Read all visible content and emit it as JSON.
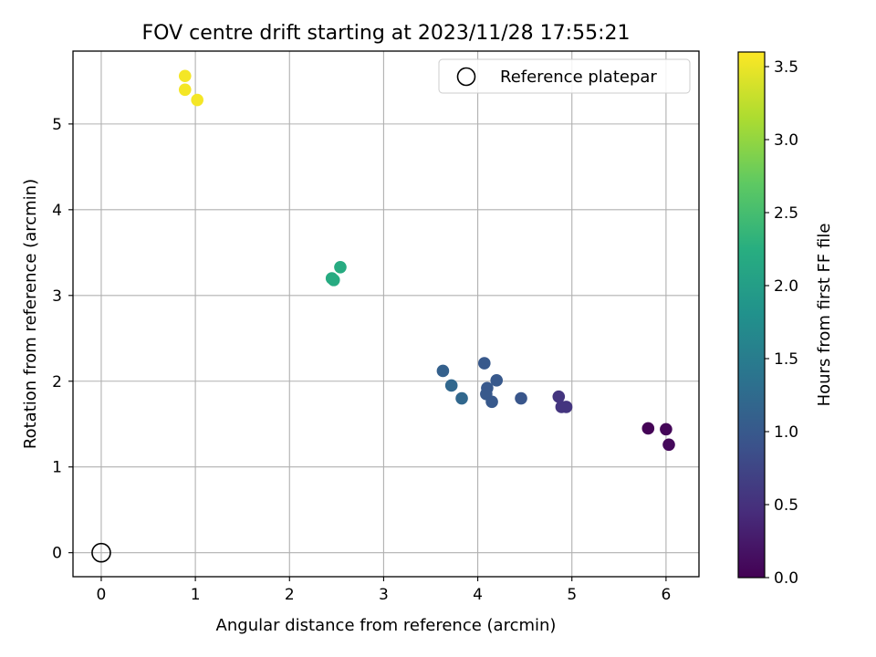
{
  "chart_data": {
    "type": "scatter",
    "title": "FOV centre drift starting at 2023/11/28 17:55:21",
    "xlabel": "Angular distance from reference (arcmin)",
    "ylabel": "Rotation from reference (arcmin)",
    "xlim": [
      -0.3,
      6.35
    ],
    "ylim": [
      -0.28,
      5.85
    ],
    "xticks": [
      0,
      1,
      2,
      3,
      4,
      5,
      6
    ],
    "yticks": [
      0,
      1,
      2,
      3,
      4,
      5
    ],
    "grid": true,
    "legend": {
      "position": "top-right",
      "entries": [
        "Reference platepar"
      ]
    },
    "reference_point": {
      "x": 0,
      "y": 0,
      "label": "Reference platepar"
    },
    "colorbar": {
      "label": "Hours from first FF file",
      "range": [
        0.0,
        3.6
      ],
      "ticks": [
        "0.0",
        "0.5",
        "1.0",
        "1.5",
        "2.0",
        "2.5",
        "3.0",
        "3.5"
      ],
      "colormap": "viridis"
    },
    "points": [
      {
        "x": 5.81,
        "y": 1.45,
        "hours": 0.02
      },
      {
        "x": 6.0,
        "y": 1.44,
        "hours": 0.05
      },
      {
        "x": 6.03,
        "y": 1.26,
        "hours": 0.08
      },
      {
        "x": 4.86,
        "y": 1.82,
        "hours": 0.55
      },
      {
        "x": 4.89,
        "y": 1.7,
        "hours": 0.55
      },
      {
        "x": 4.94,
        "y": 1.7,
        "hours": 0.55
      },
      {
        "x": 4.46,
        "y": 1.8,
        "hours": 0.95
      },
      {
        "x": 4.07,
        "y": 2.21,
        "hours": 1.0
      },
      {
        "x": 4.2,
        "y": 2.01,
        "hours": 1.0
      },
      {
        "x": 4.1,
        "y": 1.92,
        "hours": 1.0
      },
      {
        "x": 4.09,
        "y": 1.85,
        "hours": 1.0
      },
      {
        "x": 4.15,
        "y": 1.76,
        "hours": 1.0
      },
      {
        "x": 3.63,
        "y": 2.12,
        "hours": 1.1
      },
      {
        "x": 3.72,
        "y": 1.95,
        "hours": 1.2
      },
      {
        "x": 3.83,
        "y": 1.8,
        "hours": 1.2
      },
      {
        "x": 2.54,
        "y": 3.33,
        "hours": 2.2
      },
      {
        "x": 2.45,
        "y": 3.2,
        "hours": 2.2
      },
      {
        "x": 2.47,
        "y": 3.18,
        "hours": 2.2
      },
      {
        "x": 0.89,
        "y": 5.56,
        "hours": 3.55
      },
      {
        "x": 0.89,
        "y": 5.4,
        "hours": 3.55
      },
      {
        "x": 1.02,
        "y": 5.28,
        "hours": 3.55
      }
    ]
  }
}
